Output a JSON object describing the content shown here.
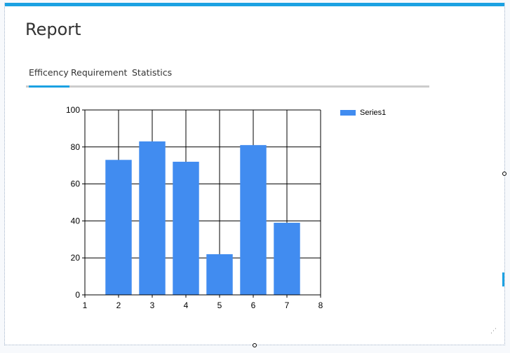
{
  "page": {
    "title": "Report"
  },
  "tabs": [
    {
      "label": "Efficency",
      "active": true
    },
    {
      "label": "Requirement",
      "active": false
    },
    {
      "label": "Statistics",
      "active": false
    }
  ],
  "colors": {
    "accent": "#1ba1e2",
    "bar": "#418cf0",
    "tab_track": "#cccccc"
  },
  "chart_data": {
    "type": "bar",
    "title": "",
    "xlabel": "",
    "ylabel": "",
    "x": [
      2,
      3,
      4,
      5,
      6,
      7
    ],
    "xlim": [
      1,
      8
    ],
    "x_ticks": [
      "1",
      "2",
      "3",
      "4",
      "5",
      "6",
      "7",
      "8"
    ],
    "ylim": [
      0,
      100
    ],
    "y_ticks": [
      "0",
      "20",
      "40",
      "60",
      "80",
      "100"
    ],
    "grid": true,
    "legend": "right",
    "series": [
      {
        "name": "Series1",
        "values": [
          73,
          83,
          72,
          22,
          81,
          39
        ]
      }
    ]
  }
}
